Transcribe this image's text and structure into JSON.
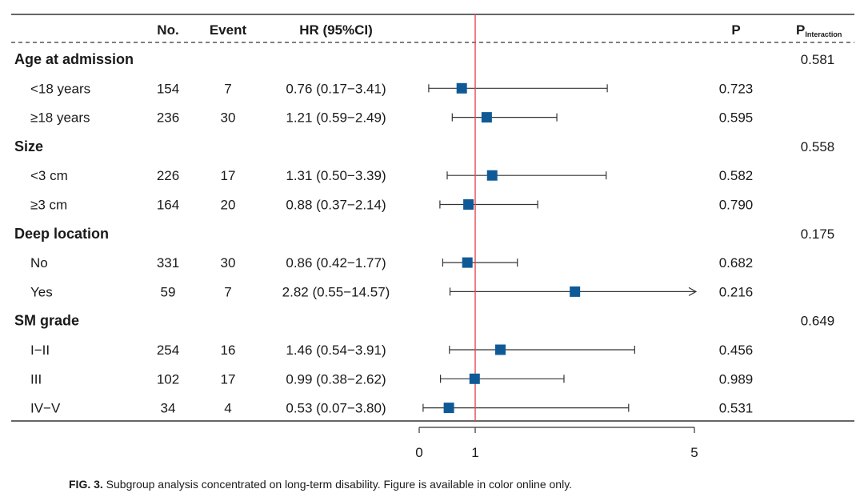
{
  "chart_data": {
    "type": "forest",
    "headers": {
      "no": "No.",
      "event": "Event",
      "hr": "HR (95%CI)",
      "p": "P",
      "p_interaction_main": "P",
      "p_interaction_sub": "Interaction"
    },
    "groups": [
      {
        "label": "Age at admission",
        "p_interaction": "0.581",
        "rows": [
          {
            "label": "<18 years",
            "no": "154",
            "event": "7",
            "hr_text": "0.76 (0.17−3.41)",
            "hr": 0.76,
            "lo": 0.17,
            "hi": 3.41,
            "p": "0.723"
          },
          {
            "label": "≥18 years",
            "no": "236",
            "event": "30",
            "hr_text": "1.21 (0.59−2.49)",
            "hr": 1.21,
            "lo": 0.59,
            "hi": 2.49,
            "p": "0.595"
          }
        ]
      },
      {
        "label": "Size",
        "p_interaction": "0.558",
        "rows": [
          {
            "label": "<3 cm",
            "no": "226",
            "event": "17",
            "hr_text": "1.31 (0.50−3.39)",
            "hr": 1.31,
            "lo": 0.5,
            "hi": 3.39,
            "p": "0.582"
          },
          {
            "label": "≥3 cm",
            "no": "164",
            "event": "20",
            "hr_text": "0.88 (0.37−2.14)",
            "hr": 0.88,
            "lo": 0.37,
            "hi": 2.14,
            "p": "0.790"
          }
        ]
      },
      {
        "label": "Deep location",
        "p_interaction": "0.175",
        "rows": [
          {
            "label": "No",
            "no": "331",
            "event": "30",
            "hr_text": "0.86 (0.42−1.77)",
            "hr": 0.86,
            "lo": 0.42,
            "hi": 1.77,
            "p": "0.682"
          },
          {
            "label": "Yes",
            "no": "59",
            "event": "7",
            "hr_text": "2.82 (0.55−14.57)",
            "hr": 2.82,
            "lo": 0.55,
            "hi": 14.57,
            "p": "0.216"
          }
        ]
      },
      {
        "label": "SM grade",
        "p_interaction": "0.649",
        "rows": [
          {
            "label": "I−II",
            "no": "254",
            "event": "16",
            "hr_text": "1.46 (0.54−3.91)",
            "hr": 1.46,
            "lo": 0.54,
            "hi": 3.91,
            "p": "0.456"
          },
          {
            "label": "III",
            "no": "102",
            "event": "17",
            "hr_text": "0.99 (0.38−2.62)",
            "hr": 0.99,
            "lo": 0.38,
            "hi": 2.62,
            "p": "0.989"
          },
          {
            "label": "IV−V",
            "no": "34",
            "event": "4",
            "hr_text": "0.53 (0.07−3.80)",
            "hr": 0.53,
            "lo": 0.07,
            "hi": 3.8,
            "p": "0.531"
          }
        ]
      }
    ],
    "x_ticks": [
      0,
      1,
      5
    ],
    "xlim": [
      0,
      5
    ],
    "reference_line": 1,
    "colors": {
      "marker": "#0f5a96",
      "reference": "#e8474f",
      "ci": "#333333"
    }
  },
  "caption": {
    "label": "FIG. 3.",
    "text": " Subgroup analysis concentrated on long-term disability. Figure is available in color online only."
  }
}
